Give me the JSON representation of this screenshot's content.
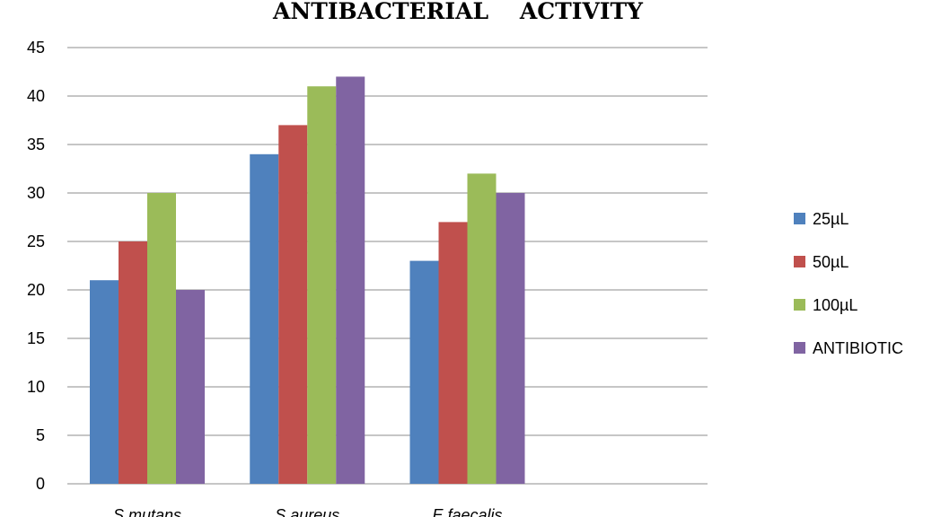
{
  "chart_data": {
    "type": "bar",
    "title": "ANTIBACTERIAL    ACTIVITY",
    "xlabel": "",
    "ylabel": "",
    "categories": [
      "S.mutans",
      "S.aureus",
      "E.faecalis"
    ],
    "series": [
      {
        "name": "25µL",
        "values": [
          21,
          34,
          23
        ],
        "color": "#4f81bd"
      },
      {
        "name": "50µL",
        "values": [
          25,
          37,
          27
        ],
        "color": "#c0504d"
      },
      {
        "name": "100µL",
        "values": [
          30,
          41,
          32
        ],
        "color": "#9bbb59"
      },
      {
        "name": "ANTIBIOTIC",
        "values": [
          20,
          42,
          30
        ],
        "color": "#8064a2"
      }
    ],
    "ylim": [
      0,
      45
    ],
    "yticks": [
      "0",
      "5",
      "10",
      "15",
      "20",
      "25",
      "30",
      "35",
      "40",
      "45"
    ],
    "grid": true,
    "legend_position": "right"
  }
}
